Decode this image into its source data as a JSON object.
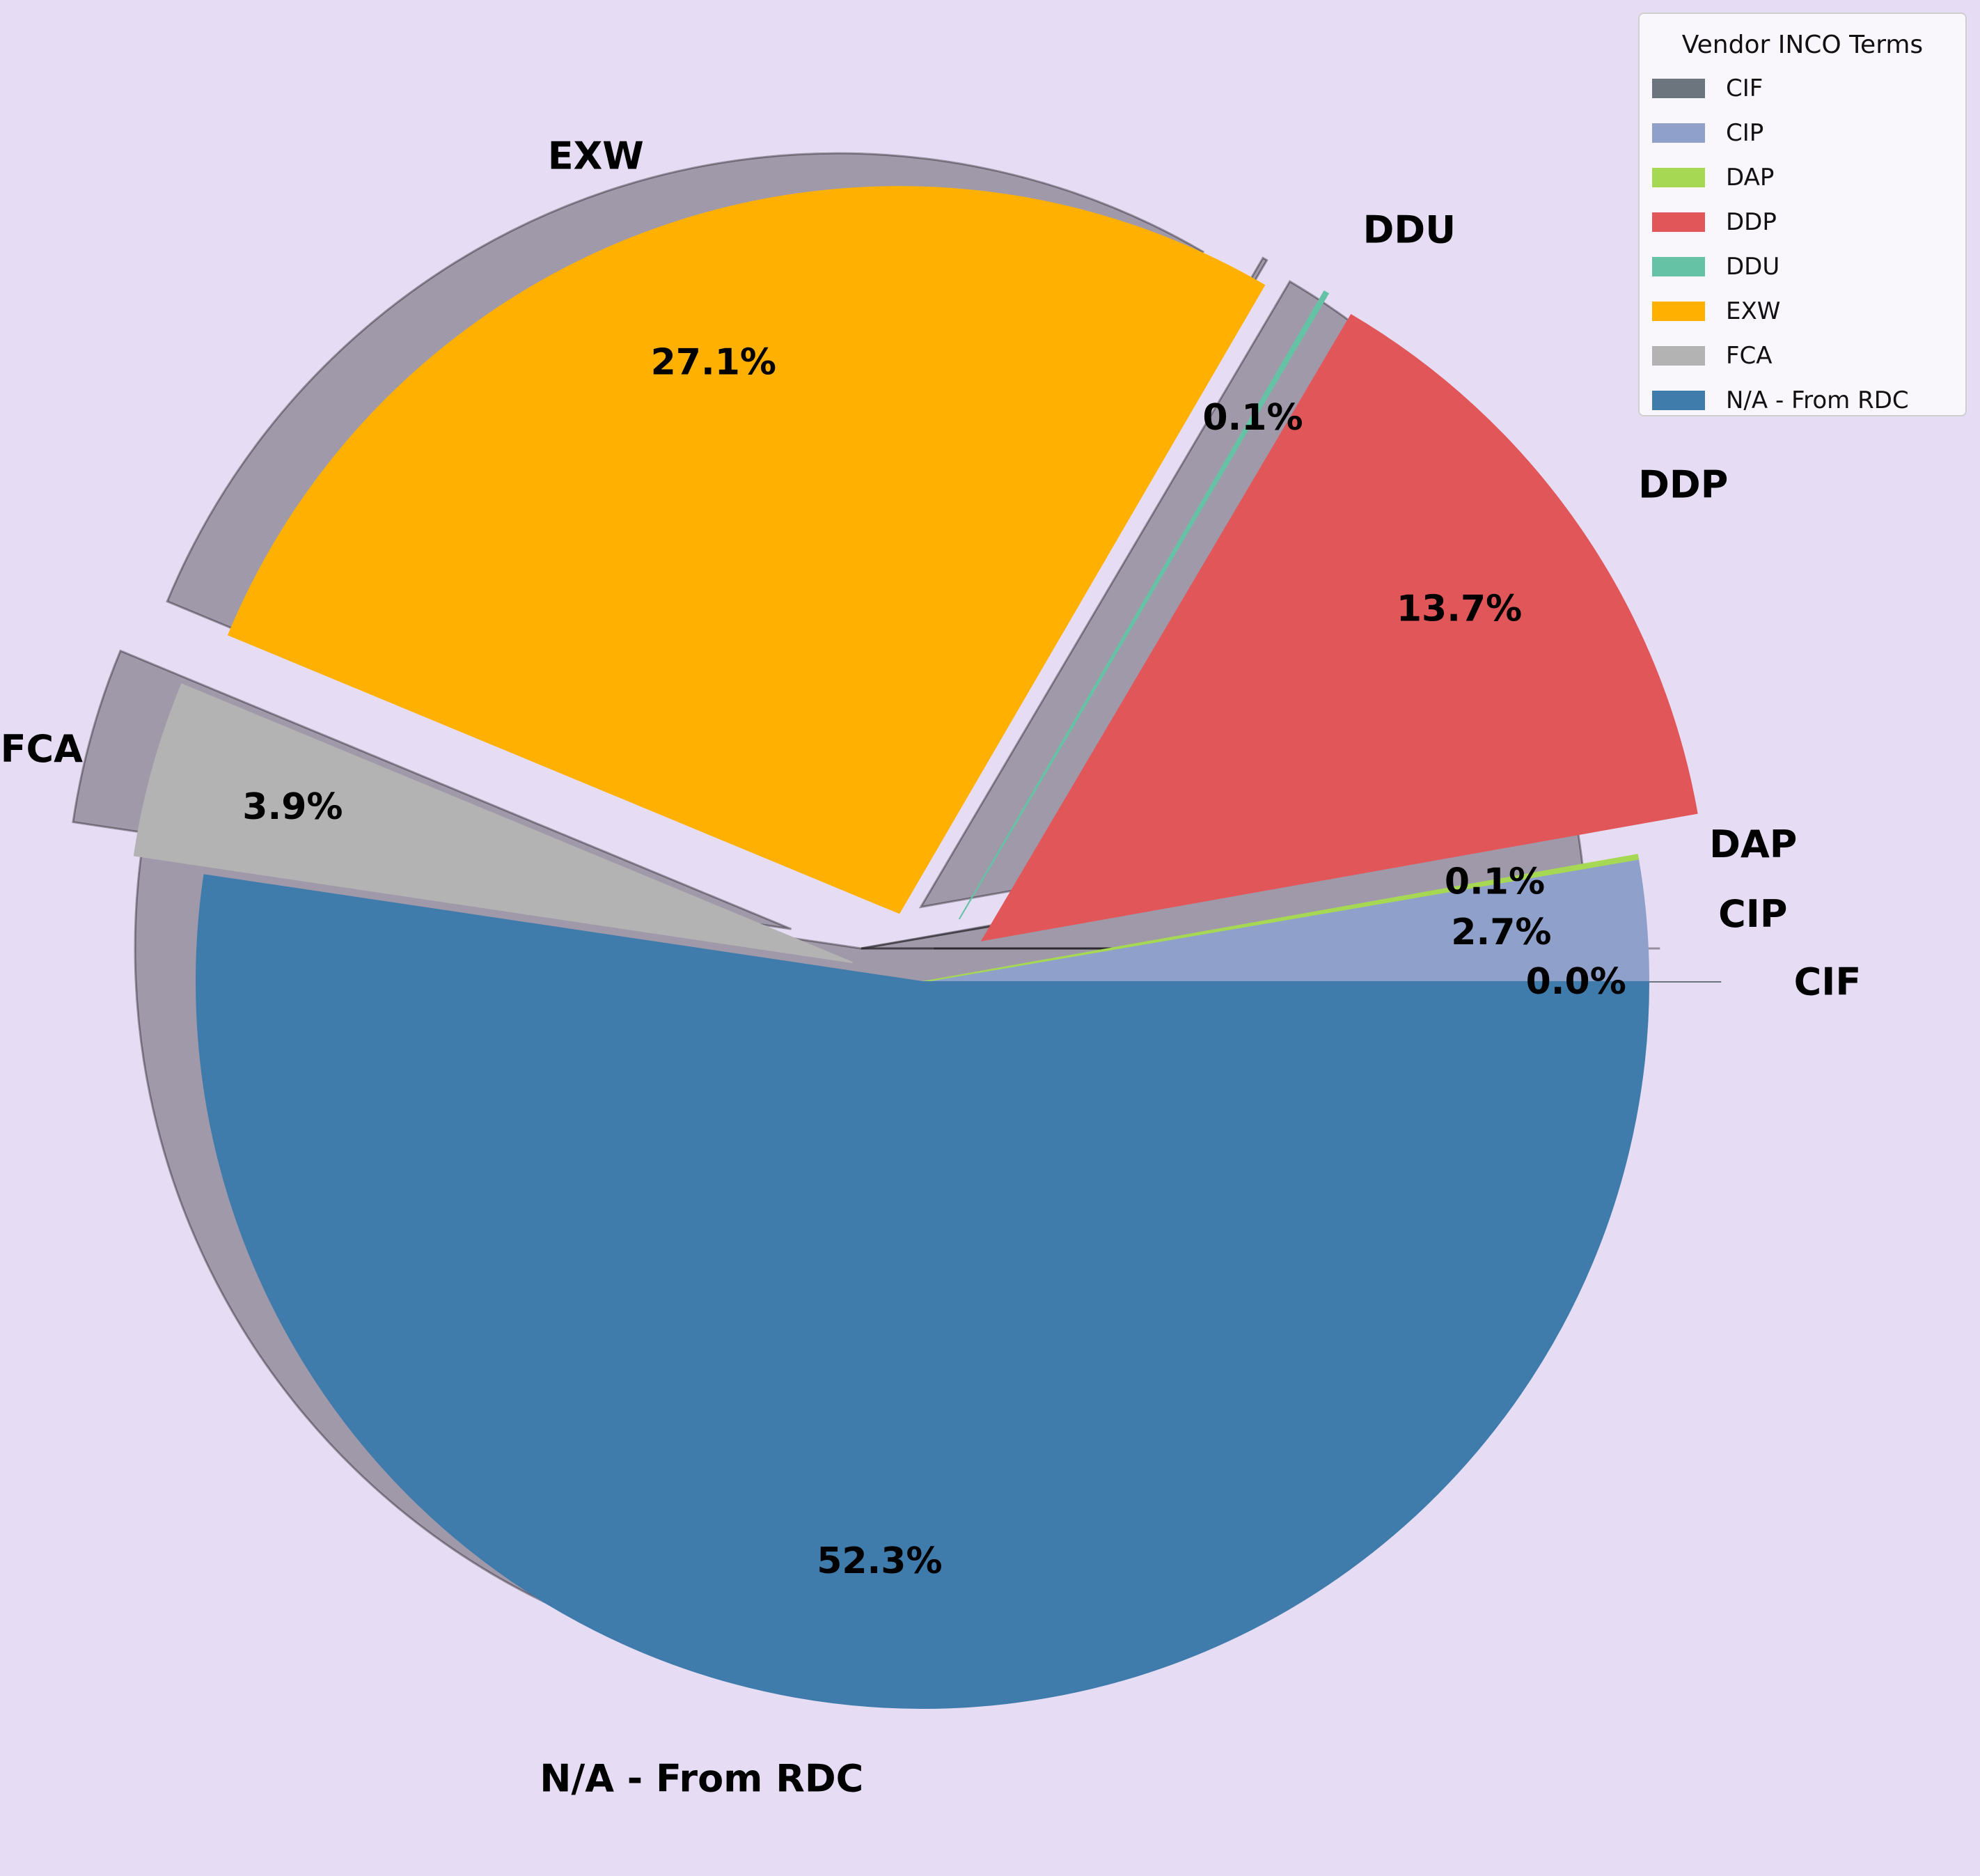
{
  "chart_data": {
    "type": "pie",
    "categories": [
      "CIF",
      "CIP",
      "DAP",
      "DDP",
      "DDU",
      "EXW",
      "FCA",
      "N/A - From RDC"
    ],
    "values": [
      0.0,
      2.7,
      0.1,
      13.7,
      0.1,
      27.1,
      3.9,
      52.3
    ],
    "pct_labels": [
      "0.0%",
      "2.7%",
      "0.1%",
      "13.7%",
      "0.1%",
      "27.1%",
      "3.9%",
      "52.3%"
    ],
    "colors": [
      "#6c757d",
      "#8fa1cb",
      "#a6d854",
      "#e15759",
      "#66c2a5",
      "#ffb000",
      "#b3b3b3",
      "#3f7bab"
    ],
    "exploded": [
      true,
      false,
      false,
      true,
      true,
      true,
      true,
      false
    ],
    "shadow": true,
    "start_angle_deg": 0,
    "direction": "counterclockwise",
    "legend": {
      "title": "Vendor INCO Terms",
      "placement": "top-right",
      "entries": [
        "CIF",
        "CIP",
        "DAP",
        "DDP",
        "DDU",
        "EXW",
        "FCA",
        "N/A - From RDC"
      ]
    }
  }
}
